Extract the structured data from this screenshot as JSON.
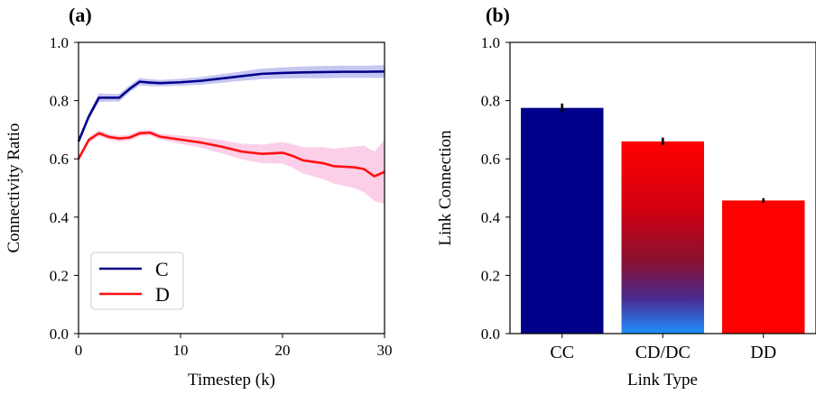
{
  "chart_data": [
    {
      "type": "line",
      "panel_label": "(a)",
      "title": "",
      "xlabel": "Timestep (k)",
      "ylabel": "Connectivity Ratio",
      "xlim": [
        0,
        30
      ],
      "ylim": [
        0.0,
        1.0
      ],
      "xticks": [
        0,
        10,
        20,
        30
      ],
      "yticks": [
        0.0,
        0.2,
        0.4,
        0.6,
        0.8,
        1.0
      ],
      "legend_position": "bottom-left",
      "grid": false,
      "series": [
        {
          "name": "C",
          "color": "#00008b",
          "band_color": "#b3b3ee",
          "x": [
            0,
            1,
            2,
            3,
            4,
            5,
            6,
            7,
            8,
            10,
            12,
            14,
            16,
            18,
            20,
            22,
            24,
            26,
            28,
            30
          ],
          "y": [
            0.66,
            0.745,
            0.81,
            0.81,
            0.81,
            0.84,
            0.865,
            0.862,
            0.86,
            0.863,
            0.868,
            0.876,
            0.884,
            0.892,
            0.895,
            0.897,
            0.898,
            0.899,
            0.899,
            0.9
          ],
          "lower": [
            0.65,
            0.735,
            0.795,
            0.797,
            0.797,
            0.828,
            0.852,
            0.85,
            0.849,
            0.851,
            0.855,
            0.861,
            0.868,
            0.874,
            0.876,
            0.877,
            0.877,
            0.878,
            0.878,
            0.878
          ],
          "upper": [
            0.67,
            0.755,
            0.825,
            0.823,
            0.823,
            0.852,
            0.878,
            0.874,
            0.871,
            0.875,
            0.881,
            0.891,
            0.9,
            0.91,
            0.914,
            0.917,
            0.919,
            0.92,
            0.92,
            0.922
          ]
        },
        {
          "name": "D",
          "color": "#ff1010",
          "band_color": "#f9bfe0",
          "x": [
            0,
            1,
            2,
            3,
            4,
            5,
            6,
            7,
            8,
            10,
            12,
            14,
            16,
            18,
            20,
            21,
            22,
            24,
            25,
            27,
            28,
            29,
            30
          ],
          "y": [
            0.6,
            0.665,
            0.688,
            0.675,
            0.67,
            0.673,
            0.688,
            0.69,
            0.676,
            0.666,
            0.656,
            0.642,
            0.625,
            0.617,
            0.621,
            0.61,
            0.595,
            0.585,
            0.575,
            0.571,
            0.565,
            0.54,
            0.555
          ],
          "lower": [
            0.592,
            0.655,
            0.678,
            0.665,
            0.66,
            0.663,
            0.678,
            0.68,
            0.666,
            0.652,
            0.638,
            0.62,
            0.598,
            0.585,
            0.584,
            0.57,
            0.55,
            0.53,
            0.515,
            0.5,
            0.485,
            0.455,
            0.445
          ],
          "upper": [
            0.608,
            0.675,
            0.698,
            0.685,
            0.68,
            0.683,
            0.698,
            0.7,
            0.686,
            0.68,
            0.674,
            0.664,
            0.652,
            0.649,
            0.658,
            0.65,
            0.64,
            0.64,
            0.635,
            0.642,
            0.645,
            0.625,
            0.665
          ]
        }
      ]
    },
    {
      "type": "bar",
      "panel_label": "(b)",
      "title": "",
      "xlabel": "Link Type",
      "ylabel": "Link Connection",
      "ylim": [
        0.0,
        1.0
      ],
      "yticks": [
        0.0,
        0.2,
        0.4,
        0.6,
        0.8,
        1.0
      ],
      "grid": false,
      "categories": [
        "CC",
        "CD/DC",
        "DD"
      ],
      "values": [
        0.775,
        0.66,
        0.457
      ],
      "errors": [
        0.015,
        0.013,
        0.008
      ],
      "colors": [
        "#00008b",
        "gradient:#ff0000-#1e90ff",
        "#ff0000"
      ]
    }
  ]
}
